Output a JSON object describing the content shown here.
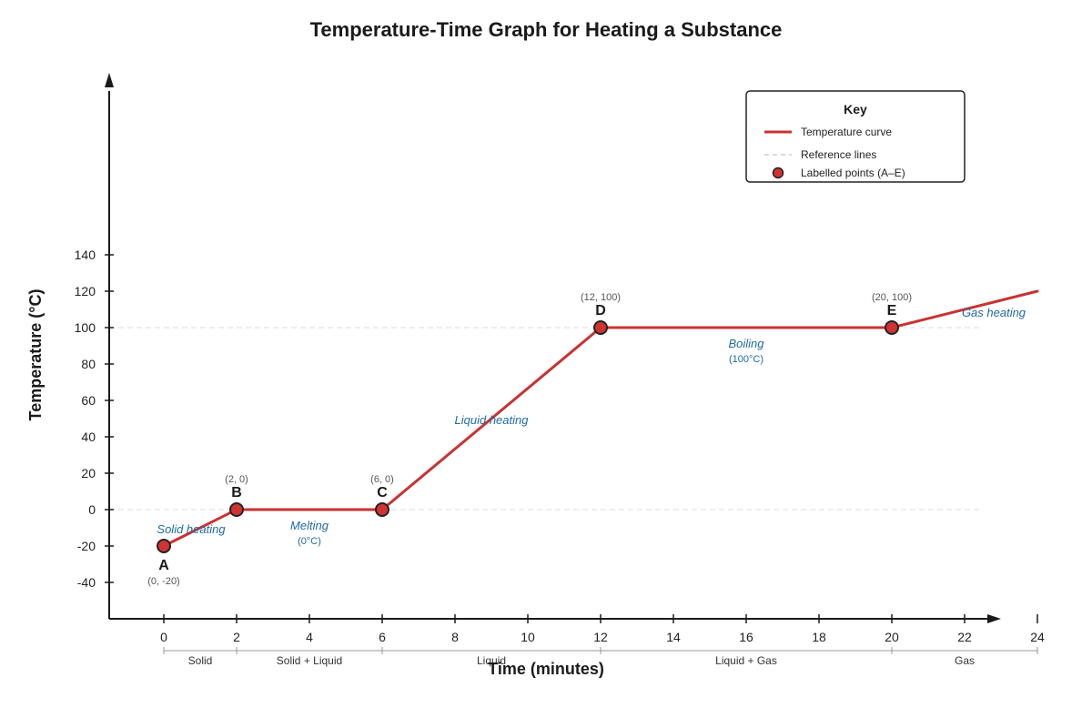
{
  "chart_data": {
    "type": "line",
    "title": "Temperature-Time Graph for Heating a Substance",
    "xlabel": "Time (minutes)",
    "ylabel": "Temperature (°C)",
    "xlim": [
      0,
      24
    ],
    "ylim": [
      -40,
      140
    ],
    "x_ticks": [
      0,
      2,
      4,
      6,
      8,
      10,
      12,
      14,
      16,
      18,
      20,
      22,
      24
    ],
    "y_ticks": [
      -40,
      -20,
      0,
      20,
      40,
      60,
      80,
      100,
      120,
      140
    ],
    "reference_lines_y": [
      0,
      100
    ],
    "series": [
      {
        "name": "Temperature curve",
        "color": "#c83232",
        "x": [
          0,
          2,
          6,
          12,
          20,
          24
        ],
        "y": [
          -20,
          0,
          0,
          100,
          100,
          120
        ]
      }
    ],
    "points": [
      {
        "label": "A",
        "x": 0,
        "y": -20,
        "coord": "(0, -20)",
        "label_pos": "below"
      },
      {
        "label": "B",
        "x": 2,
        "y": 0,
        "coord": "(2, 0)",
        "label_pos": "above"
      },
      {
        "label": "C",
        "x": 6,
        "y": 0,
        "coord": "(6, 0)",
        "label_pos": "above"
      },
      {
        "label": "D",
        "x": 12,
        "y": 100,
        "coord": "(12, 100)",
        "label_pos": "above"
      },
      {
        "label": "E",
        "x": 20,
        "y": 100,
        "coord": "(20, 100)",
        "label_pos": "above"
      }
    ],
    "annotations": [
      {
        "text": "Solid heating",
        "x": 0.75,
        "y": -13
      },
      {
        "text": "Melting",
        "sub": "(0°C)",
        "x": 4,
        "y": -11
      },
      {
        "text": "Liquid heating",
        "x": 9,
        "y": 47
      },
      {
        "text": "Boiling",
        "sub": "(100°C)",
        "x": 16,
        "y": 89
      },
      {
        "text": "Gas heating",
        "x": 22.8,
        "y": 106
      }
    ],
    "phases": [
      {
        "label": "Solid",
        "start": 0,
        "end": 2
      },
      {
        "label": "Solid + Liquid",
        "start": 2,
        "end": 6
      },
      {
        "label": "Liquid",
        "start": 6,
        "end": 12
      },
      {
        "label": "Liquid + Gas",
        "start": 12,
        "end": 20
      },
      {
        "label": "Gas",
        "start": 20,
        "end": 24
      }
    ],
    "legend": {
      "title": "Key",
      "position": "top-right",
      "items": [
        {
          "label": "Temperature curve",
          "kind": "line"
        },
        {
          "label": "Reference lines",
          "kind": "dashed"
        },
        {
          "label": "Labelled points (A–E)",
          "kind": "marker"
        }
      ]
    },
    "colors": {
      "curve": "#c83232",
      "marker_fill": "#d23232",
      "marker_stroke": "#222222",
      "annotation": "#1f6aa5",
      "reference": "#dddddd",
      "axis": "#1a1a1a"
    },
    "grid": false
  }
}
